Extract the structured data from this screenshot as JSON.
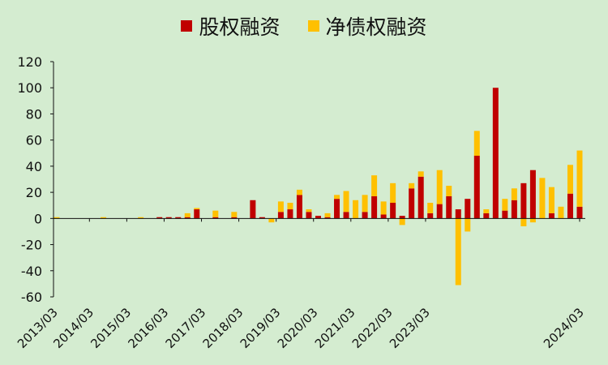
{
  "chart_data": {
    "type": "bar",
    "stacked": true,
    "legend_position": "top-center",
    "series": [
      {
        "name": "股权融资",
        "color": "#c00000",
        "values": [
          0,
          0,
          0,
          0,
          0,
          0,
          0,
          0,
          0,
          0,
          0,
          1,
          1,
          1,
          1,
          7,
          0,
          1,
          0,
          1,
          0,
          14,
          1,
          0,
          5,
          7,
          18,
          5,
          2,
          1,
          15,
          5,
          0,
          5,
          17,
          3,
          12,
          2,
          23,
          32,
          4,
          11,
          17,
          7,
          15,
          48,
          4,
          100,
          6,
          14,
          27,
          37,
          0,
          4,
          0,
          19,
          9
        ]
      },
      {
        "name": "净债权融资",
        "color": "#ffc000",
        "values": [
          1,
          0,
          0,
          0,
          0,
          1,
          0,
          0,
          0,
          1,
          0,
          0,
          0,
          0,
          3,
          1,
          0,
          5,
          0,
          4,
          0,
          0,
          0,
          -3,
          8,
          5,
          4,
          2,
          0,
          3,
          3,
          16,
          14,
          13,
          16,
          10,
          15,
          -5,
          4,
          4,
          8,
          26,
          8,
          -51,
          -10,
          19,
          3,
          0,
          9,
          9,
          -6,
          -3,
          31,
          20,
          9,
          22,
          43
        ]
      }
    ],
    "x_tick_labels": [
      "2013/03",
      "2014/03",
      "2015/03",
      "2016/03",
      "2017/03",
      "2018/03",
      "2019/03",
      "2020/03",
      "2021/03",
      "2022/03",
      "2023/03",
      "2024/03"
    ],
    "ylim": [
      -60,
      120
    ],
    "y_ticks": [
      -60,
      -40,
      -20,
      0,
      20,
      40,
      60,
      80,
      100,
      120
    ],
    "grid": false,
    "xlabel": "",
    "ylabel": "",
    "title": ""
  }
}
